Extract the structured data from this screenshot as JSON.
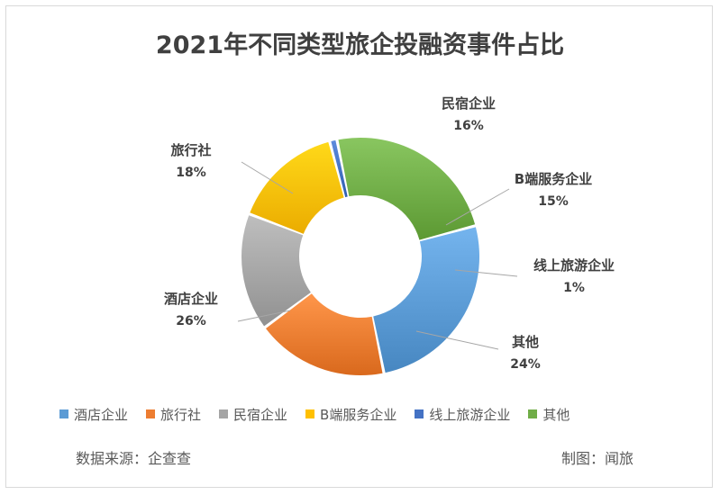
{
  "chart_data": {
    "type": "pie",
    "variant": "donut",
    "title": "2021年不同类型旅企投融资事件占比",
    "categories": [
      "酒店企业",
      "旅行社",
      "民宿企业",
      "B端服务企业",
      "线上旅游企业",
      "其他"
    ],
    "values": [
      26,
      18,
      16,
      15,
      1,
      24
    ],
    "value_labels": [
      "26%",
      "18%",
      "16%",
      "15%",
      "1%",
      "24%"
    ],
    "colors": [
      "#5b9bd5",
      "#ed7d31",
      "#a5a5a5",
      "#ffc000",
      "#4472c4",
      "#70ad47"
    ],
    "legend_position": "bottom"
  },
  "footer": {
    "source": "数据来源：企查查",
    "credit": "制图：闻旅"
  }
}
